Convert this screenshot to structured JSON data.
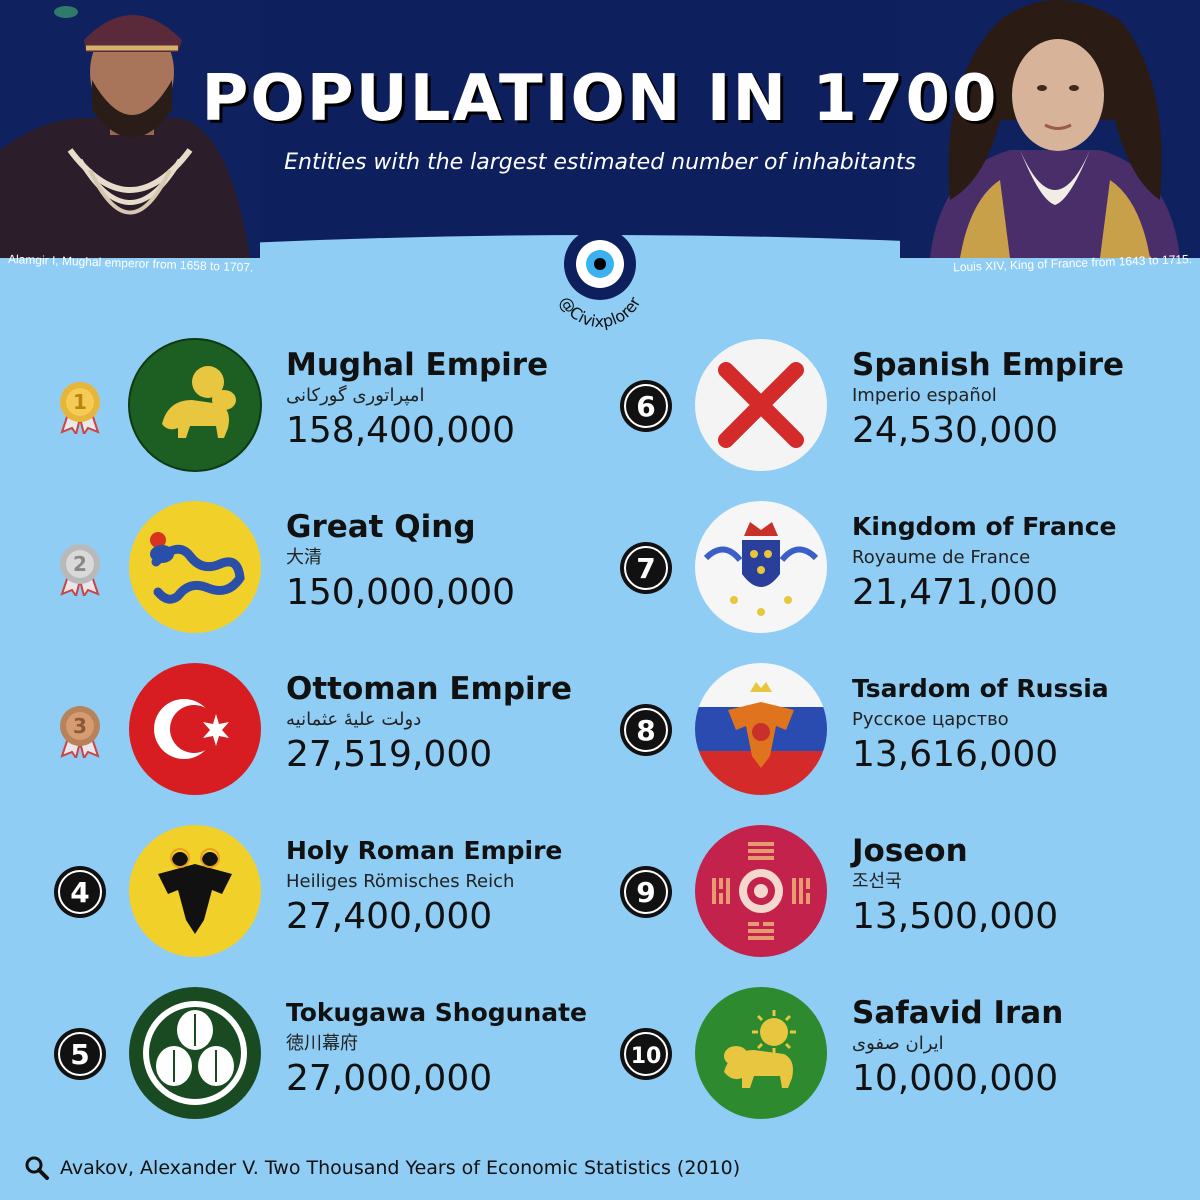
{
  "header": {
    "title": "POPULATION IN 1700",
    "subtitle": "Entities with the largest estimated number of inhabitants",
    "caption_left": "Alamgir I, Mughal emperor from 1658 to 1707.",
    "caption_right": "Louis XIV, King of France from 1643 to 1715.",
    "brand": "@Civixplorer",
    "colors": {
      "header_bg": "#0e1f5e",
      "page_bg": "#8fcdf5"
    }
  },
  "entries": [
    {
      "rank": "1",
      "name": "Mughal Empire",
      "native": "امپراتوری گورکانی",
      "population": "158,400,000",
      "badge": "gold-medal-icon",
      "flag": "mughal-lion-flag-icon"
    },
    {
      "rank": "2",
      "name": "Great Qing",
      "native": "大清",
      "population": "150,000,000",
      "badge": "silver-medal-icon",
      "flag": "qing-dragon-flag-icon"
    },
    {
      "rank": "3",
      "name": "Ottoman Empire",
      "native": "دولت علیهٔ عثمانیه",
      "population": "27,519,000",
      "badge": "bronze-medal-icon",
      "flag": "ottoman-crescent-flag-icon"
    },
    {
      "rank": "4",
      "name": "Holy Roman Empire",
      "native": "Heiliges Römisches Reich",
      "population": "27,400,000",
      "badge": "number-4-icon",
      "flag": "hre-eagle-flag-icon"
    },
    {
      "rank": "5",
      "name": "Tokugawa Shogunate",
      "native": "徳川幕府",
      "population": "27,000,000",
      "badge": "number-5-icon",
      "flag": "tokugawa-crest-flag-icon"
    },
    {
      "rank": "6",
      "name": "Spanish Empire",
      "native": "Imperio español",
      "population": "24,530,000",
      "badge": "number-6-icon",
      "flag": "burgundy-cross-flag-icon"
    },
    {
      "rank": "7",
      "name": "Kingdom of France",
      "native": "Royaume de France",
      "population": "21,471,000",
      "badge": "number-7-icon",
      "flag": "france-royal-arms-flag-icon"
    },
    {
      "rank": "8",
      "name": "Tsardom of Russia",
      "native": "Русское царство",
      "population": "13,616,000",
      "badge": "number-8-icon",
      "flag": "russia-eagle-flag-icon"
    },
    {
      "rank": "9",
      "name": "Joseon",
      "native": "조선국",
      "population": "13,500,000",
      "badge": "number-9-icon",
      "flag": "joseon-trigram-flag-icon"
    },
    {
      "rank": "10",
      "name": "Safavid Iran",
      "native": "ایران صفوی",
      "population": "10,000,000",
      "badge": "number-10-icon",
      "flag": "safavid-lion-sun-flag-icon"
    }
  ],
  "footer": {
    "source": "Avakov, Alexander V. Two Thousand Years of Economic Statistics (2010)",
    "icon": "magnifier-icon"
  }
}
